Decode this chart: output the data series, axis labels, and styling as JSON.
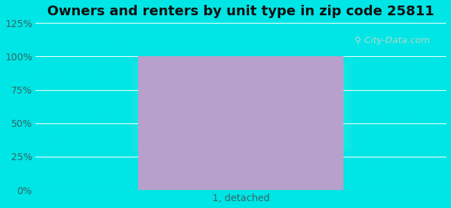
{
  "title": "Owners and renters by unit type in zip code 25811",
  "categories": [
    "1, detached"
  ],
  "values": [
    100
  ],
  "bar_color": "#b8a0cc",
  "bar_width": 0.5,
  "ylim": [
    0,
    125
  ],
  "yticks": [
    0,
    25,
    50,
    75,
    100,
    125
  ],
  "ytick_labels": [
    "0%",
    "25%",
    "50%",
    "75%",
    "100%",
    "125%"
  ],
  "title_fontsize": 14,
  "tick_fontsize": 10,
  "bg_outer_color": "#00e5e5",
  "watermark_text": "City-Data.com",
  "watermark_color": "#c8d8c8",
  "grid_color": "#ffffff",
  "xlabel_color": "#336666",
  "ytick_color": "#336666"
}
